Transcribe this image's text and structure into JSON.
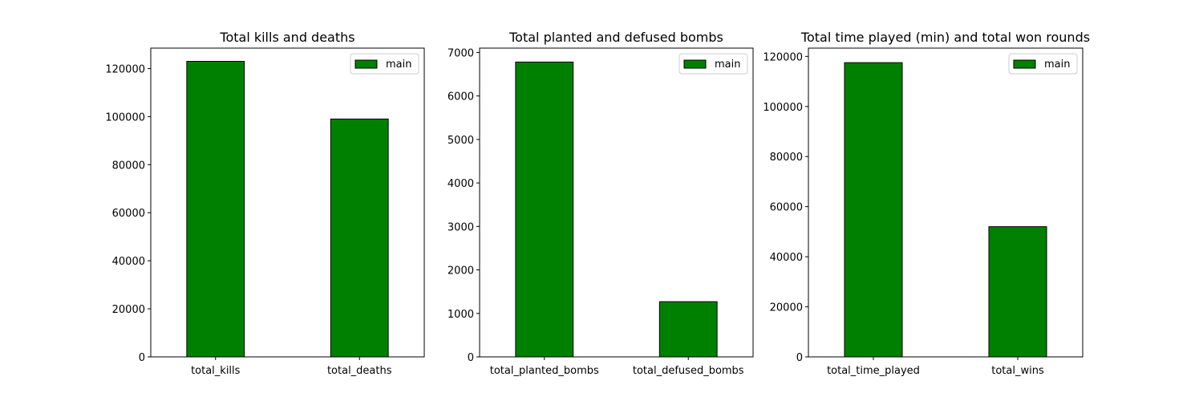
{
  "colors": {
    "bar": "#008000",
    "edge": "#000000",
    "legend_border": "#cccccc"
  },
  "chart_data": [
    {
      "type": "bar",
      "title": "Total kills and deaths",
      "categories": [
        "total_kills",
        "total_deaths"
      ],
      "series": [
        {
          "name": "main",
          "values": [
            123000,
            99000
          ]
        }
      ],
      "ylim": [
        0,
        128500
      ],
      "yticks": [
        0,
        20000,
        40000,
        60000,
        80000,
        100000,
        120000
      ],
      "yticks_labels": [
        "0",
        "20000",
        "40000",
        "60000",
        "80000",
        "100000",
        "120000"
      ],
      "xlabel": "",
      "ylabel": "",
      "grid": false,
      "legend": "top-right"
    },
    {
      "type": "bar",
      "title": "Total planted and defused bombs",
      "categories": [
        "total_planted_bombs",
        "total_defused_bombs"
      ],
      "series": [
        {
          "name": "main",
          "values": [
            6780,
            1270
          ]
        }
      ],
      "ylim": [
        0,
        7100
      ],
      "yticks": [
        0,
        1000,
        2000,
        3000,
        4000,
        5000,
        6000,
        7000
      ],
      "yticks_labels": [
        "0",
        "1000",
        "2000",
        "3000",
        "4000",
        "5000",
        "6000",
        "7000"
      ],
      "xlabel": "",
      "ylabel": "",
      "grid": false,
      "legend": "top-right"
    },
    {
      "type": "bar",
      "title": "Total time played (min) and total won rounds",
      "categories": [
        "total_time_played",
        "total_wins"
      ],
      "series": [
        {
          "name": "main",
          "values": [
            117500,
            52000
          ]
        }
      ],
      "ylim": [
        0,
        123300
      ],
      "yticks": [
        0,
        20000,
        40000,
        60000,
        80000,
        100000,
        120000
      ],
      "yticks_labels": [
        "0",
        "20000",
        "40000",
        "60000",
        "80000",
        "100000",
        "120000"
      ],
      "xlabel": "",
      "ylabel": "",
      "grid": false,
      "legend": "top-right"
    }
  ]
}
